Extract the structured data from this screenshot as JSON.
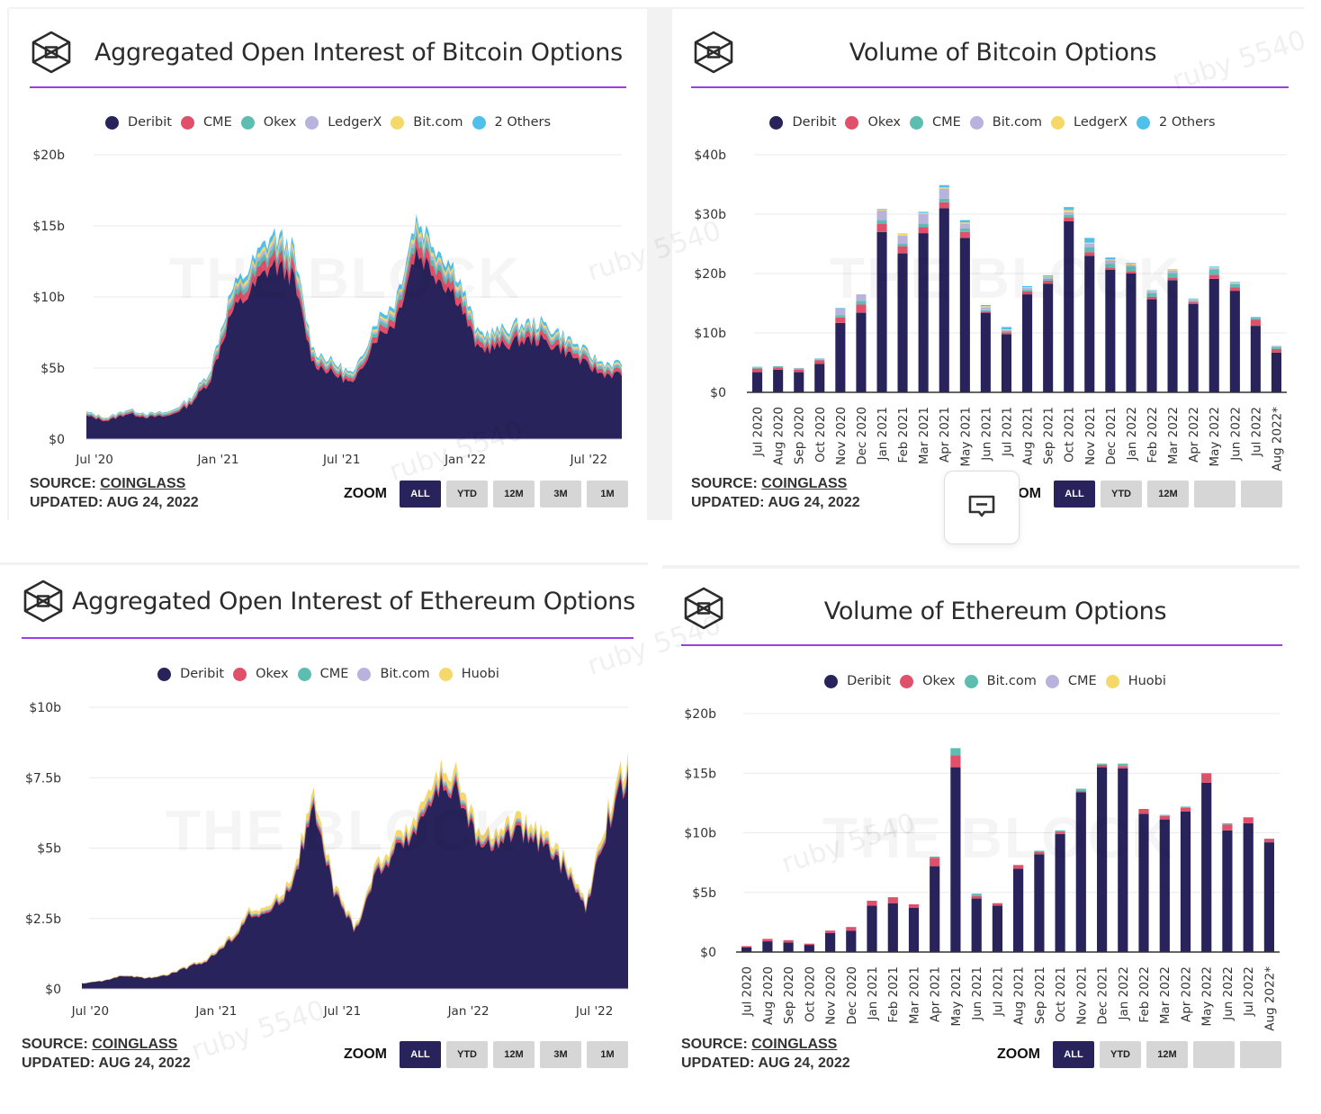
{
  "colors": {
    "deribit": "#28245b",
    "red": "#e0506a",
    "teal": "#5dbdb0",
    "lavender": "#b7b3dd",
    "yellow": "#f5d86a",
    "blue": "#4fc0ea",
    "rule": "#9b3ee8",
    "zoom_active": "#28245b",
    "zoom_inactive": "#d6d6d6"
  },
  "watermark": {
    "brand": "THE BLOCK",
    "user": "ruby 5540"
  },
  "feedback_button": {
    "icon": "comment-minus-icon"
  },
  "panels": [
    {
      "id": "btc-oi",
      "title": "Aggregated Open Interest of Bitcoin Options",
      "legend": [
        {
          "label": "Deribit",
          "color": "#28245b"
        },
        {
          "label": "CME",
          "color": "#e0506a"
        },
        {
          "label": "Okex",
          "color": "#5dbdb0"
        },
        {
          "label": "LedgerX",
          "color": "#b7b3dd"
        },
        {
          "label": "Bit.com",
          "color": "#f5d86a"
        },
        {
          "label": "2 Others",
          "color": "#4fc0ea"
        }
      ],
      "source_label": "SOURCE:",
      "source_name": "COINGLASS",
      "updated": "UPDATED: AUG 24, 2022",
      "zoom_label": "ZOOM",
      "zoom_buttons": [
        "ALL",
        "YTD",
        "12M",
        "3M",
        "1M"
      ],
      "zoom_active": "ALL"
    },
    {
      "id": "btc-vol",
      "title": "Volume of Bitcoin Options",
      "legend": [
        {
          "label": "Deribit",
          "color": "#28245b"
        },
        {
          "label": "Okex",
          "color": "#e0506a"
        },
        {
          "label": "CME",
          "color": "#5dbdb0"
        },
        {
          "label": "Bit.com",
          "color": "#b7b3dd"
        },
        {
          "label": "LedgerX",
          "color": "#f5d86a"
        },
        {
          "label": "2 Others",
          "color": "#4fc0ea"
        }
      ],
      "source_label": "SOURCE:",
      "source_name": "COINGLASS",
      "updated": "UPDATED: AUG 24, 2022",
      "zoom_label": "ZOOM",
      "zoom_buttons": [
        "ALL",
        "YTD",
        "12M",
        "",
        ""
      ],
      "zoom_active": "ALL"
    },
    {
      "id": "eth-oi",
      "title": "Aggregated Open Interest of Ethereum Options",
      "legend": [
        {
          "label": "Deribit",
          "color": "#28245b"
        },
        {
          "label": "Okex",
          "color": "#e0506a"
        },
        {
          "label": "CME",
          "color": "#5dbdb0"
        },
        {
          "label": "Bit.com",
          "color": "#b7b3dd"
        },
        {
          "label": "Huobi",
          "color": "#f5d86a"
        }
      ],
      "source_label": "SOURCE:",
      "source_name": "COINGLASS",
      "updated": "UPDATED: AUG 24, 2022",
      "zoom_label": "ZOOM",
      "zoom_buttons": [
        "ALL",
        "YTD",
        "12M",
        "3M",
        "1M"
      ],
      "zoom_active": "ALL"
    },
    {
      "id": "eth-vol",
      "title": "Volume of Ethereum Options",
      "legend": [
        {
          "label": "Deribit",
          "color": "#28245b"
        },
        {
          "label": "Okex",
          "color": "#e0506a"
        },
        {
          "label": "Bit.com",
          "color": "#5dbdb0"
        },
        {
          "label": "CME",
          "color": "#b7b3dd"
        },
        {
          "label": "Huobi",
          "color": "#f5d86a"
        }
      ],
      "source_label": "SOURCE:",
      "source_name": "COINGLASS",
      "updated": "UPDATED: AUG 24, 2022",
      "zoom_label": "ZOOM",
      "zoom_buttons": [
        "ALL",
        "YTD",
        "12M",
        "",
        ""
      ],
      "zoom_active": "ALL"
    }
  ],
  "chart_data": [
    {
      "type": "area",
      "title": "Aggregated Open Interest of Bitcoin Options",
      "stacked": true,
      "y_ticks": [
        "$0",
        "$5b",
        "$10b",
        "$15b",
        "$20b"
      ],
      "ylim": [
        0,
        20
      ],
      "yunit": "USD billions",
      "x_ticks": [
        "Jul '20",
        "Jan '21",
        "Jul '21",
        "Jan '22",
        "Jul '22"
      ],
      "grid": true,
      "legend_position": "top-center",
      "x": [
        "2020-06",
        "2020-07",
        "2020-08",
        "2020-09",
        "2020-10",
        "2020-11",
        "2020-12",
        "2021-01",
        "2021-02",
        "2021-03",
        "2021-04",
        "2021-05",
        "2021-06",
        "2021-07",
        "2021-08",
        "2021-09",
        "2021-10",
        "2021-11",
        "2021-12",
        "2022-01",
        "2022-02",
        "2022-03",
        "2022-04",
        "2022-05",
        "2022-06",
        "2022-07",
        "2022-08"
      ],
      "total": [
        1.9,
        1.5,
        2.1,
        1.8,
        1.9,
        2.8,
        4.8,
        10.3,
        12.2,
        14.4,
        13.5,
        6.3,
        5.4,
        4.5,
        8.3,
        9.7,
        15.6,
        13.6,
        11.8,
        7.4,
        7.6,
        8.1,
        8.2,
        7.5,
        6.4,
        5.4,
        5.3
      ],
      "series": [
        {
          "name": "Deribit",
          "share": 0.85
        },
        {
          "name": "CME",
          "share": 0.05
        },
        {
          "name": "Okex",
          "share": 0.03
        },
        {
          "name": "LedgerX",
          "share": 0.02
        },
        {
          "name": "Bit.com",
          "share": 0.02
        },
        {
          "name": "2 Others",
          "share": 0.03
        }
      ]
    },
    {
      "type": "bar",
      "stacked": true,
      "title": "Volume of Bitcoin Options",
      "categories": [
        "Jul 2020",
        "Aug 2020",
        "Sep 2020",
        "Oct 2020",
        "Nov 2020",
        "Dec 2020",
        "Jan 2021",
        "Feb 2021",
        "Mar 2021",
        "Apr 2021",
        "May 2021",
        "Jun 2021",
        "Jul 2021",
        "Aug 2021",
        "Sep 2021",
        "Oct 2021",
        "Nov 2021",
        "Dec 2021",
        "Jan 2022",
        "Feb 2022",
        "Mar 2022",
        "Apr 2022",
        "May 2022",
        "Jun 2022",
        "Jul 2022",
        "Aug 2022*"
      ],
      "y_ticks": [
        "$0",
        "$10b",
        "$20b",
        "$30b",
        "$40b"
      ],
      "ylim": [
        0,
        40
      ],
      "yunit": "USD billions",
      "grid": true,
      "legend_position": "top-center",
      "series": [
        {
          "name": "Deribit",
          "values": [
            3.4,
            3.8,
            3.4,
            4.8,
            11.7,
            13.4,
            27.0,
            23.4,
            26.8,
            31.0,
            26.0,
            13.4,
            9.8,
            16.5,
            18.3,
            28.8,
            23.0,
            20.6,
            20.0,
            15.7,
            18.9,
            14.9,
            19.1,
            17.1,
            11.2,
            6.7
          ]
        },
        {
          "name": "Okex",
          "values": [
            0.6,
            0.4,
            0.4,
            0.6,
            0.9,
            1.4,
            1.4,
            1.2,
            1.0,
            1.0,
            1.0,
            0.2,
            0.3,
            0.5,
            0.5,
            0.6,
            0.6,
            0.4,
            0.4,
            0.4,
            0.4,
            0.3,
            0.7,
            0.6,
            1.0,
            0.6
          ]
        },
        {
          "name": "CME",
          "values": [
            0.1,
            0.2,
            0.2,
            0.1,
            0.4,
            0.6,
            0.6,
            0.4,
            0.6,
            0.6,
            0.6,
            0.2,
            0.2,
            0.3,
            0.3,
            0.5,
            0.8,
            0.6,
            0.8,
            0.6,
            0.8,
            0.2,
            0.9,
            0.5,
            0.3,
            0.3
          ]
        },
        {
          "name": "Bit.com",
          "values": [
            0.1,
            0.0,
            0.1,
            0.1,
            1.1,
            1.1,
            1.6,
            1.4,
            1.6,
            1.7,
            0.8,
            0.5,
            0.2,
            0.3,
            0.3,
            0.4,
            0.6,
            0.6,
            0.3,
            0.3,
            0.4,
            0.2,
            0.2,
            0.2,
            0.1,
            0.1
          ]
        },
        {
          "name": "LedgerX",
          "values": [
            0.0,
            0.0,
            0.0,
            0.0,
            0.0,
            0.0,
            0.2,
            0.4,
            0.2,
            0.2,
            0.2,
            0.2,
            0.1,
            0.1,
            0.1,
            0.4,
            0.2,
            0.2,
            0.2,
            0.1,
            0.1,
            0.1,
            0.2,
            0.1,
            0.0,
            0.0
          ]
        },
        {
          "name": "2 Others",
          "values": [
            0.1,
            0.0,
            0.0,
            0.1,
            0.1,
            0.0,
            0.1,
            0.0,
            0.2,
            0.4,
            0.4,
            0.2,
            0.4,
            0.2,
            0.2,
            0.5,
            0.8,
            0.3,
            0.1,
            0.1,
            0.1,
            0.1,
            0.1,
            0.1,
            0.1,
            0.1
          ]
        }
      ]
    },
    {
      "type": "area",
      "title": "Aggregated Open Interest of Ethereum Options",
      "stacked": true,
      "y_ticks": [
        "$0",
        "$2.5b",
        "$5b",
        "$7.5b",
        "$10b"
      ],
      "ylim": [
        0,
        10
      ],
      "yunit": "USD billions",
      "x_ticks": [
        "Jul '20",
        "Jan '21",
        "Jul '21",
        "Jan '22",
        "Jul '22"
      ],
      "grid": true,
      "legend_position": "top-center",
      "x": [
        "2020-06",
        "2020-07",
        "2020-08",
        "2020-09",
        "2020-10",
        "2020-11",
        "2020-12",
        "2021-01",
        "2021-02",
        "2021-03",
        "2021-04",
        "2021-05",
        "2021-06",
        "2021-07",
        "2021-08",
        "2021-09",
        "2021-10",
        "2021-11",
        "2021-12",
        "2022-01",
        "2022-02",
        "2022-03",
        "2022-04",
        "2022-05",
        "2022-06",
        "2022-07",
        "2022-08"
      ],
      "total": [
        0.2,
        0.3,
        0.5,
        0.4,
        0.5,
        0.8,
        1.1,
        1.8,
        2.8,
        2.9,
        4.0,
        6.9,
        3.7,
        2.2,
        4.4,
        5.3,
        6.3,
        7.7,
        7.6,
        5.2,
        5.8,
        6.0,
        5.4,
        4.6,
        3.0,
        6.3,
        8.3
      ],
      "series": [
        {
          "name": "Deribit",
          "share": 0.92
        },
        {
          "name": "Okex",
          "share": 0.02
        },
        {
          "name": "CME",
          "share": 0.01
        },
        {
          "name": "Bit.com",
          "share": 0.01
        },
        {
          "name": "Huobi",
          "share": 0.04
        }
      ]
    },
    {
      "type": "bar",
      "stacked": true,
      "title": "Volume of Ethereum Options",
      "categories": [
        "Jul 2020",
        "Aug 2020",
        "Sep 2020",
        "Oct 2020",
        "Nov 2020",
        "Dec 2020",
        "Jan 2021",
        "Feb 2021",
        "Mar 2021",
        "Apr 2021",
        "May 2021",
        "Jun 2021",
        "Jul 2021",
        "Aug 2021",
        "Sep 2021",
        "Oct 2021",
        "Nov 2021",
        "Dec 2021",
        "Jan 2022",
        "Feb 2022",
        "Mar 2022",
        "Apr 2022",
        "May 2022",
        "Jun 2022",
        "Jul 2022",
        "Aug 2022*"
      ],
      "y_ticks": [
        "$0",
        "$5b",
        "$10b",
        "$15b",
        "$20b"
      ],
      "ylim": [
        0,
        20
      ],
      "yunit": "USD billions",
      "grid": true,
      "legend_position": "top-center",
      "series": [
        {
          "name": "Deribit",
          "values": [
            0.4,
            0.9,
            0.8,
            0.6,
            1.6,
            1.8,
            3.9,
            4.1,
            3.7,
            7.2,
            15.5,
            4.5,
            3.9,
            7.0,
            8.2,
            9.9,
            13.4,
            15.5,
            15.4,
            11.6,
            11.1,
            11.8,
            14.2,
            10.2,
            10.8,
            9.2
          ]
        },
        {
          "name": "Okex",
          "values": [
            0.1,
            0.2,
            0.2,
            0.1,
            0.2,
            0.3,
            0.4,
            0.5,
            0.3,
            0.7,
            1.0,
            0.2,
            0.2,
            0.3,
            0.2,
            0.2,
            0.1,
            0.2,
            0.2,
            0.4,
            0.3,
            0.3,
            0.8,
            0.5,
            0.5,
            0.3
          ]
        },
        {
          "name": "Bit.com",
          "values": [
            0.0,
            0.0,
            0.0,
            0.0,
            0.0,
            0.0,
            0.0,
            0.0,
            0.0,
            0.1,
            0.6,
            0.2,
            0.0,
            0.0,
            0.1,
            0.1,
            0.2,
            0.1,
            0.2,
            0.0,
            0.1,
            0.1,
            0.0,
            0.1,
            0.0,
            0.0
          ]
        },
        {
          "name": "CME",
          "values": [
            0,
            0,
            0,
            0,
            0,
            0,
            0,
            0,
            0,
            0,
            0,
            0,
            0,
            0,
            0,
            0,
            0,
            0,
            0,
            0,
            0,
            0,
            0,
            0,
            0,
            0
          ]
        },
        {
          "name": "Huobi",
          "values": [
            0,
            0,
            0,
            0,
            0,
            0,
            0,
            0,
            0,
            0,
            0,
            0,
            0,
            0,
            0,
            0,
            0,
            0,
            0,
            0,
            0,
            0,
            0,
            0,
            0,
            0
          ]
        }
      ]
    }
  ]
}
